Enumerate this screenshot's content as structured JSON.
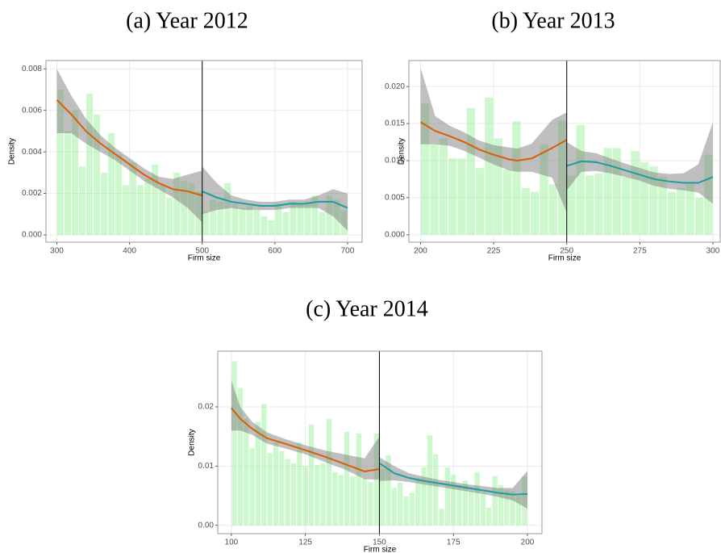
{
  "chart_data": [
    {
      "type": "histogram",
      "title": "(a) Year 2012",
      "xlabel": "Firm size",
      "ylabel": "Density",
      "bins": [
        300,
        310,
        320,
        330,
        340,
        350,
        360,
        370,
        380,
        390,
        400,
        410,
        420,
        430,
        440,
        450,
        460,
        470,
        480,
        490,
        500,
        510,
        520,
        530,
        540,
        550,
        560,
        570,
        580,
        590,
        600,
        610,
        620,
        630,
        640,
        650,
        660,
        670,
        680,
        690,
        700
      ],
      "counts": [
        0.007,
        0.005,
        0.006,
        0.0033,
        0.0068,
        0.0058,
        0.003,
        0.0049,
        0.0039,
        0.0024,
        0.0035,
        0.0024,
        0.0027,
        0.0034,
        0.0024,
        0.0018,
        0.003,
        0.0026,
        0.0025,
        0.0021,
        0.0011,
        0.0017,
        0.0016,
        0.0025,
        0.0015,
        0.0013,
        0.0014,
        0.0012,
        0.0009,
        0.0007,
        0.0015,
        0.0011,
        0.0016,
        0.0015,
        0.0016,
        0.0019,
        0.0011,
        0.0019,
        0.0017,
        0.0012
      ],
      "bar_color": "#90ee90",
      "band_color": "#7f7f7f",
      "cutoff": 500,
      "fits": [
        {
          "color": "#d95f02",
          "x": [
            300,
            320,
            340,
            360,
            380,
            400,
            420,
            440,
            460,
            480,
            500
          ],
          "values": [
            0.0065,
            0.0058,
            0.005,
            0.0044,
            0.0039,
            0.0034,
            0.0029,
            0.0025,
            0.0022,
            0.0021,
            0.0019
          ],
          "lower": [
            0.0049,
            0.0049,
            0.0044,
            0.004,
            0.0036,
            0.0031,
            0.0026,
            0.0022,
            0.0018,
            0.0013,
            0.0006
          ],
          "upper": [
            0.008,
            0.0067,
            0.0056,
            0.0048,
            0.0042,
            0.0037,
            0.0032,
            0.0028,
            0.0027,
            0.0029,
            0.0031
          ]
        },
        {
          "color": "#1b9e9e",
          "x": [
            500,
            520,
            540,
            560,
            580,
            600,
            620,
            640,
            660,
            680,
            700
          ],
          "values": [
            0.0021,
            0.0018,
            0.0016,
            0.0015,
            0.0014,
            0.0014,
            0.0015,
            0.0015,
            0.0016,
            0.0016,
            0.0013
          ],
          "lower": [
            0.001,
            0.0012,
            0.0013,
            0.0012,
            0.0012,
            0.0012,
            0.0013,
            0.0013,
            0.0013,
            0.0009,
            0.0002
          ],
          "upper": [
            0.0033,
            0.0025,
            0.0019,
            0.0017,
            0.0016,
            0.0016,
            0.0017,
            0.0017,
            0.0019,
            0.0022,
            0.002
          ]
        }
      ],
      "xlim": [
        285,
        720
      ],
      "ylim": [
        -0.00035,
        0.0084
      ],
      "xticks": [
        300,
        400,
        500,
        600,
        700
      ],
      "yticks": [
        {
          "value": 0,
          "label": "0.000"
        },
        {
          "value": 0.002,
          "label": "0.002"
        },
        {
          "value": 0.004,
          "label": "0.004"
        },
        {
          "value": 0.006,
          "label": "0.006"
        },
        {
          "value": 0.008,
          "label": "0.008"
        }
      ],
      "grid": true
    },
    {
      "type": "histogram",
      "title": "(b) Year 2013",
      "xlabel": "Firm size",
      "ylabel": "Density",
      "bins": [
        200,
        203.125,
        206.25,
        209.375,
        212.5,
        215.625,
        218.75,
        221.875,
        225,
        228.125,
        231.25,
        234.375,
        237.5,
        240.625,
        243.75,
        246.875,
        250,
        253.125,
        256.25,
        259.375,
        262.5,
        265.625,
        268.75,
        271.875,
        275,
        278.125,
        281.25,
        284.375,
        287.5,
        290.625,
        293.75,
        296.875,
        300
      ],
      "counts": [
        0.0177,
        0.0122,
        0.013,
        0.0103,
        0.0103,
        0.0171,
        0.009,
        0.0185,
        0.013,
        0.0088,
        0.0153,
        0.0063,
        0.0058,
        0.0122,
        0.0068,
        0.0154,
        0.008,
        0.0148,
        0.008,
        0.0083,
        0.0117,
        0.0117,
        0.0078,
        0.0113,
        0.0098,
        0.0092,
        0.0078,
        0.0058,
        0.0063,
        0.0068,
        0.005,
        0.0108
      ],
      "bar_color": "#90ee90",
      "band_color": "#7f7f7f",
      "cutoff": 250,
      "fits": [
        {
          "color": "#d95f02",
          "x": [
            200,
            205,
            210,
            215,
            220,
            225,
            230,
            233,
            238,
            245,
            250
          ],
          "values": [
            0.0152,
            0.014,
            0.0133,
            0.0125,
            0.0115,
            0.0108,
            0.0102,
            0.01,
            0.0103,
            0.0117,
            0.0128
          ],
          "lower": [
            0.0122,
            0.0122,
            0.012,
            0.0113,
            0.0104,
            0.0095,
            0.0087,
            0.0085,
            0.0085,
            0.0077,
            0.003
          ],
          "upper": [
            0.0225,
            0.016,
            0.0147,
            0.0138,
            0.0127,
            0.0121,
            0.0118,
            0.0116,
            0.0123,
            0.0155,
            0.0165
          ]
        },
        {
          "color": "#1b9e9e",
          "x": [
            250,
            255,
            260,
            265,
            270,
            275,
            280,
            285,
            290,
            295,
            300
          ],
          "values": [
            0.0093,
            0.0099,
            0.0098,
            0.0093,
            0.0087,
            0.0081,
            0.0075,
            0.0072,
            0.007,
            0.007,
            0.0078
          ],
          "lower": [
            0.006,
            0.0085,
            0.0086,
            0.0083,
            0.0078,
            0.0073,
            0.0066,
            0.0062,
            0.006,
            0.0057,
            0.0042
          ],
          "upper": [
            0.0125,
            0.0113,
            0.011,
            0.0103,
            0.0096,
            0.009,
            0.0084,
            0.0082,
            0.0083,
            0.0095,
            0.0152
          ]
        }
      ],
      "xlim": [
        196,
        302.5
      ],
      "ylim": [
        -0.001,
        0.0235
      ],
      "xticks": [
        200,
        225,
        250,
        275,
        300
      ],
      "yticks": [
        {
          "value": 0,
          "label": "0.000"
        },
        {
          "value": 0.005,
          "label": "0.005"
        },
        {
          "value": 0.01,
          "label": "0.010"
        },
        {
          "value": 0.015,
          "label": "0.015"
        },
        {
          "value": 0.02,
          "label": "0.020"
        }
      ],
      "grid": true
    },
    {
      "type": "histogram",
      "title": "(c) Year 2014",
      "xlabel": "Firm size",
      "ylabel": "Density",
      "bins": [
        100,
        102,
        104,
        106,
        108,
        110,
        112,
        114,
        116,
        118,
        120,
        122,
        124,
        126,
        128,
        130,
        132,
        134,
        136,
        138,
        140,
        142,
        144,
        146,
        148,
        150,
        152,
        154,
        156,
        158,
        160,
        162,
        164,
        166,
        168,
        170,
        172,
        174,
        176,
        178,
        180,
        182,
        184,
        186,
        188,
        190,
        192,
        194,
        196,
        198,
        200
      ],
      "counts": [
        0.0277,
        0.0232,
        0.018,
        0.013,
        0.0175,
        0.0205,
        0.0122,
        0.014,
        0.0125,
        0.0112,
        0.0105,
        0.014,
        0.01,
        0.017,
        0.0102,
        0.0105,
        0.018,
        0.009,
        0.0085,
        0.0158,
        0.0083,
        0.0155,
        0.008,
        0.0073,
        0.0155,
        0.0095,
        0.0118,
        0.0063,
        0.0072,
        0.0049,
        0.0055,
        0.008,
        0.0098,
        0.0152,
        0.012,
        0.0028,
        0.0098,
        0.0085,
        0.0068,
        0.0075,
        0.0058,
        0.009,
        0.0055,
        0.003,
        0.0083,
        0.0068,
        0.006,
        0.0058,
        0.005,
        0.0083
      ],
      "bar_color": "#90ee90",
      "band_color": "#7f7f7f",
      "cutoff": 150,
      "fits": [
        {
          "color": "#d95f02",
          "x": [
            100,
            103,
            107,
            112,
            118,
            125,
            132,
            138,
            145,
            150
          ],
          "values": [
            0.0198,
            0.018,
            0.0163,
            0.0147,
            0.0138,
            0.0127,
            0.0115,
            0.0104,
            0.0091,
            0.0095
          ],
          "lower": [
            0.016,
            0.016,
            0.0153,
            0.0138,
            0.013,
            0.012,
            0.0106,
            0.0095,
            0.0078,
            0.0077
          ],
          "upper": [
            0.0245,
            0.02,
            0.0175,
            0.0157,
            0.0146,
            0.0135,
            0.0126,
            0.012,
            0.0113,
            0.015
          ]
        },
        {
          "color": "#1b9e9e",
          "x": [
            150,
            155,
            160,
            165,
            170,
            175,
            180,
            185,
            190,
            195,
            200
          ],
          "values": [
            0.0105,
            0.0088,
            0.008,
            0.0075,
            0.0071,
            0.0067,
            0.0063,
            0.0059,
            0.0055,
            0.0052,
            0.0053
          ],
          "lower": [
            0.0075,
            0.0076,
            0.0073,
            0.0069,
            0.0065,
            0.0061,
            0.0057,
            0.0053,
            0.0048,
            0.0042,
            0.0028
          ],
          "upper": [
            0.0115,
            0.01,
            0.0088,
            0.0082,
            0.0077,
            0.0073,
            0.0069,
            0.0066,
            0.0063,
            0.0063,
            0.0092
          ]
        }
      ],
      "xlim": [
        95.4,
        204.9
      ],
      "ylim": [
        -0.0014,
        0.0294
      ],
      "xticks": [
        100,
        125,
        150,
        175,
        200
      ],
      "yticks": [
        {
          "value": 0,
          "label": "0.00"
        },
        {
          "value": 0.01,
          "label": "0.01"
        },
        {
          "value": 0.02,
          "label": "0.02"
        }
      ],
      "grid": true
    }
  ]
}
